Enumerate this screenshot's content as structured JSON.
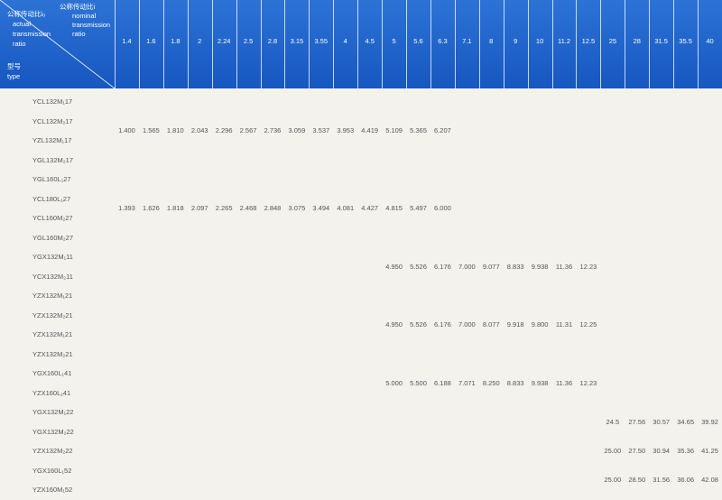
{
  "table": {
    "corner": {
      "actual_ratio": [
        "公称传动比i₀",
        "actual",
        "transmission",
        "ratio"
      ],
      "nominal_ratio": [
        "公称传动比i",
        "nominal",
        "transmission",
        "ratio"
      ],
      "type": [
        "型号",
        "type"
      ]
    },
    "columns": [
      "1.4",
      "1.6",
      "1.8",
      "2",
      "2.24",
      "2.5",
      "2.8",
      "3.15",
      "3.55",
      "4",
      "4.5",
      "5",
      "5.6",
      "6.3",
      "7.1",
      "8",
      "9",
      "10",
      "11.2",
      "12.5",
      "25",
      "28",
      "31.5",
      "35.5",
      "40"
    ],
    "groups": [
      {
        "rows": [
          "YCL132M₁17",
          "YCL132M₂17",
          "YZL132M₁17",
          "YGL132M₂17"
        ],
        "cells": [
          "1.400",
          "1.565",
          "1.810",
          "2.043",
          "2.296",
          "2.567",
          "2.736",
          "3.059",
          "3.537",
          "3.953",
          "4.419",
          "5.109",
          "5.365",
          "6.207",
          null,
          null,
          null,
          null,
          null,
          null,
          null,
          null,
          null,
          null,
          null
        ]
      },
      {
        "rows": [
          "YGL160L₁27",
          "YCL180L₁27",
          "YCL160M₂27",
          "YGL160M₂27"
        ],
        "cells": [
          "1.393",
          "1.626",
          "1.818",
          "2.097",
          "2.265",
          "2.468",
          "2.848",
          "3.075",
          "3.494",
          "4.081",
          "4.427",
          "4.815",
          "5.497",
          "6.000",
          null,
          null,
          null,
          null,
          null,
          null,
          null,
          null,
          null,
          null,
          null
        ]
      },
      {
        "rows": [
          "YGX132M₁11",
          "YCX132M₂11"
        ],
        "cells": [
          null,
          null,
          null,
          null,
          null,
          null,
          null,
          null,
          null,
          null,
          null,
          "4.950",
          "5.526",
          "6.176",
          "7.000",
          "9.077",
          "8.833",
          "9.938",
          "11.36",
          "12.23",
          null,
          null,
          null,
          null,
          null
        ]
      },
      {
        "rows": [
          "YZX132M₁21",
          "YZX132M₂21",
          "YZX132M₁21",
          "YZX132M₂21"
        ],
        "cells": [
          null,
          null,
          null,
          null,
          null,
          null,
          null,
          null,
          null,
          null,
          null,
          "4.950",
          "5.526",
          "6.176",
          "7.000",
          "8.077",
          "9.918",
          "9.800",
          "11.31",
          "12.25",
          null,
          null,
          null,
          null,
          null
        ]
      },
      {
        "rows": [
          "YGX160L₁41",
          "YZX160L₁41"
        ],
        "cells": [
          null,
          null,
          null,
          null,
          null,
          null,
          null,
          null,
          null,
          null,
          null,
          "5.000",
          "5.500",
          "6.188",
          "7.071",
          "8.250",
          "8.833",
          "9.938",
          "11.36",
          "12.23",
          null,
          null,
          null,
          null,
          null
        ]
      },
      {
        "rows": [
          "YGX132M₁22",
          "YGX132M₂22"
        ],
        "cells": [
          null,
          null,
          null,
          null,
          null,
          null,
          null,
          null,
          null,
          null,
          null,
          null,
          null,
          null,
          null,
          null,
          null,
          null,
          null,
          null,
          "24.5",
          "27.56",
          "30.57",
          "34.65",
          "39.92"
        ]
      },
      {
        "rows": [
          "YZX132M₂22"
        ],
        "cells": [
          null,
          null,
          null,
          null,
          null,
          null,
          null,
          null,
          null,
          null,
          null,
          null,
          null,
          null,
          null,
          null,
          null,
          null,
          null,
          null,
          "25.00",
          "27.50",
          "30.94",
          "35.36",
          "41.25"
        ]
      },
      {
        "rows": [
          "YGX160L₁52",
          "YZX160M₁52"
        ],
        "cells": [
          null,
          null,
          null,
          null,
          null,
          null,
          null,
          null,
          null,
          null,
          null,
          null,
          null,
          null,
          null,
          null,
          null,
          null,
          null,
          null,
          "25.00",
          "28.50",
          "31.56",
          "36.06",
          "42.08"
        ]
      }
    ]
  }
}
